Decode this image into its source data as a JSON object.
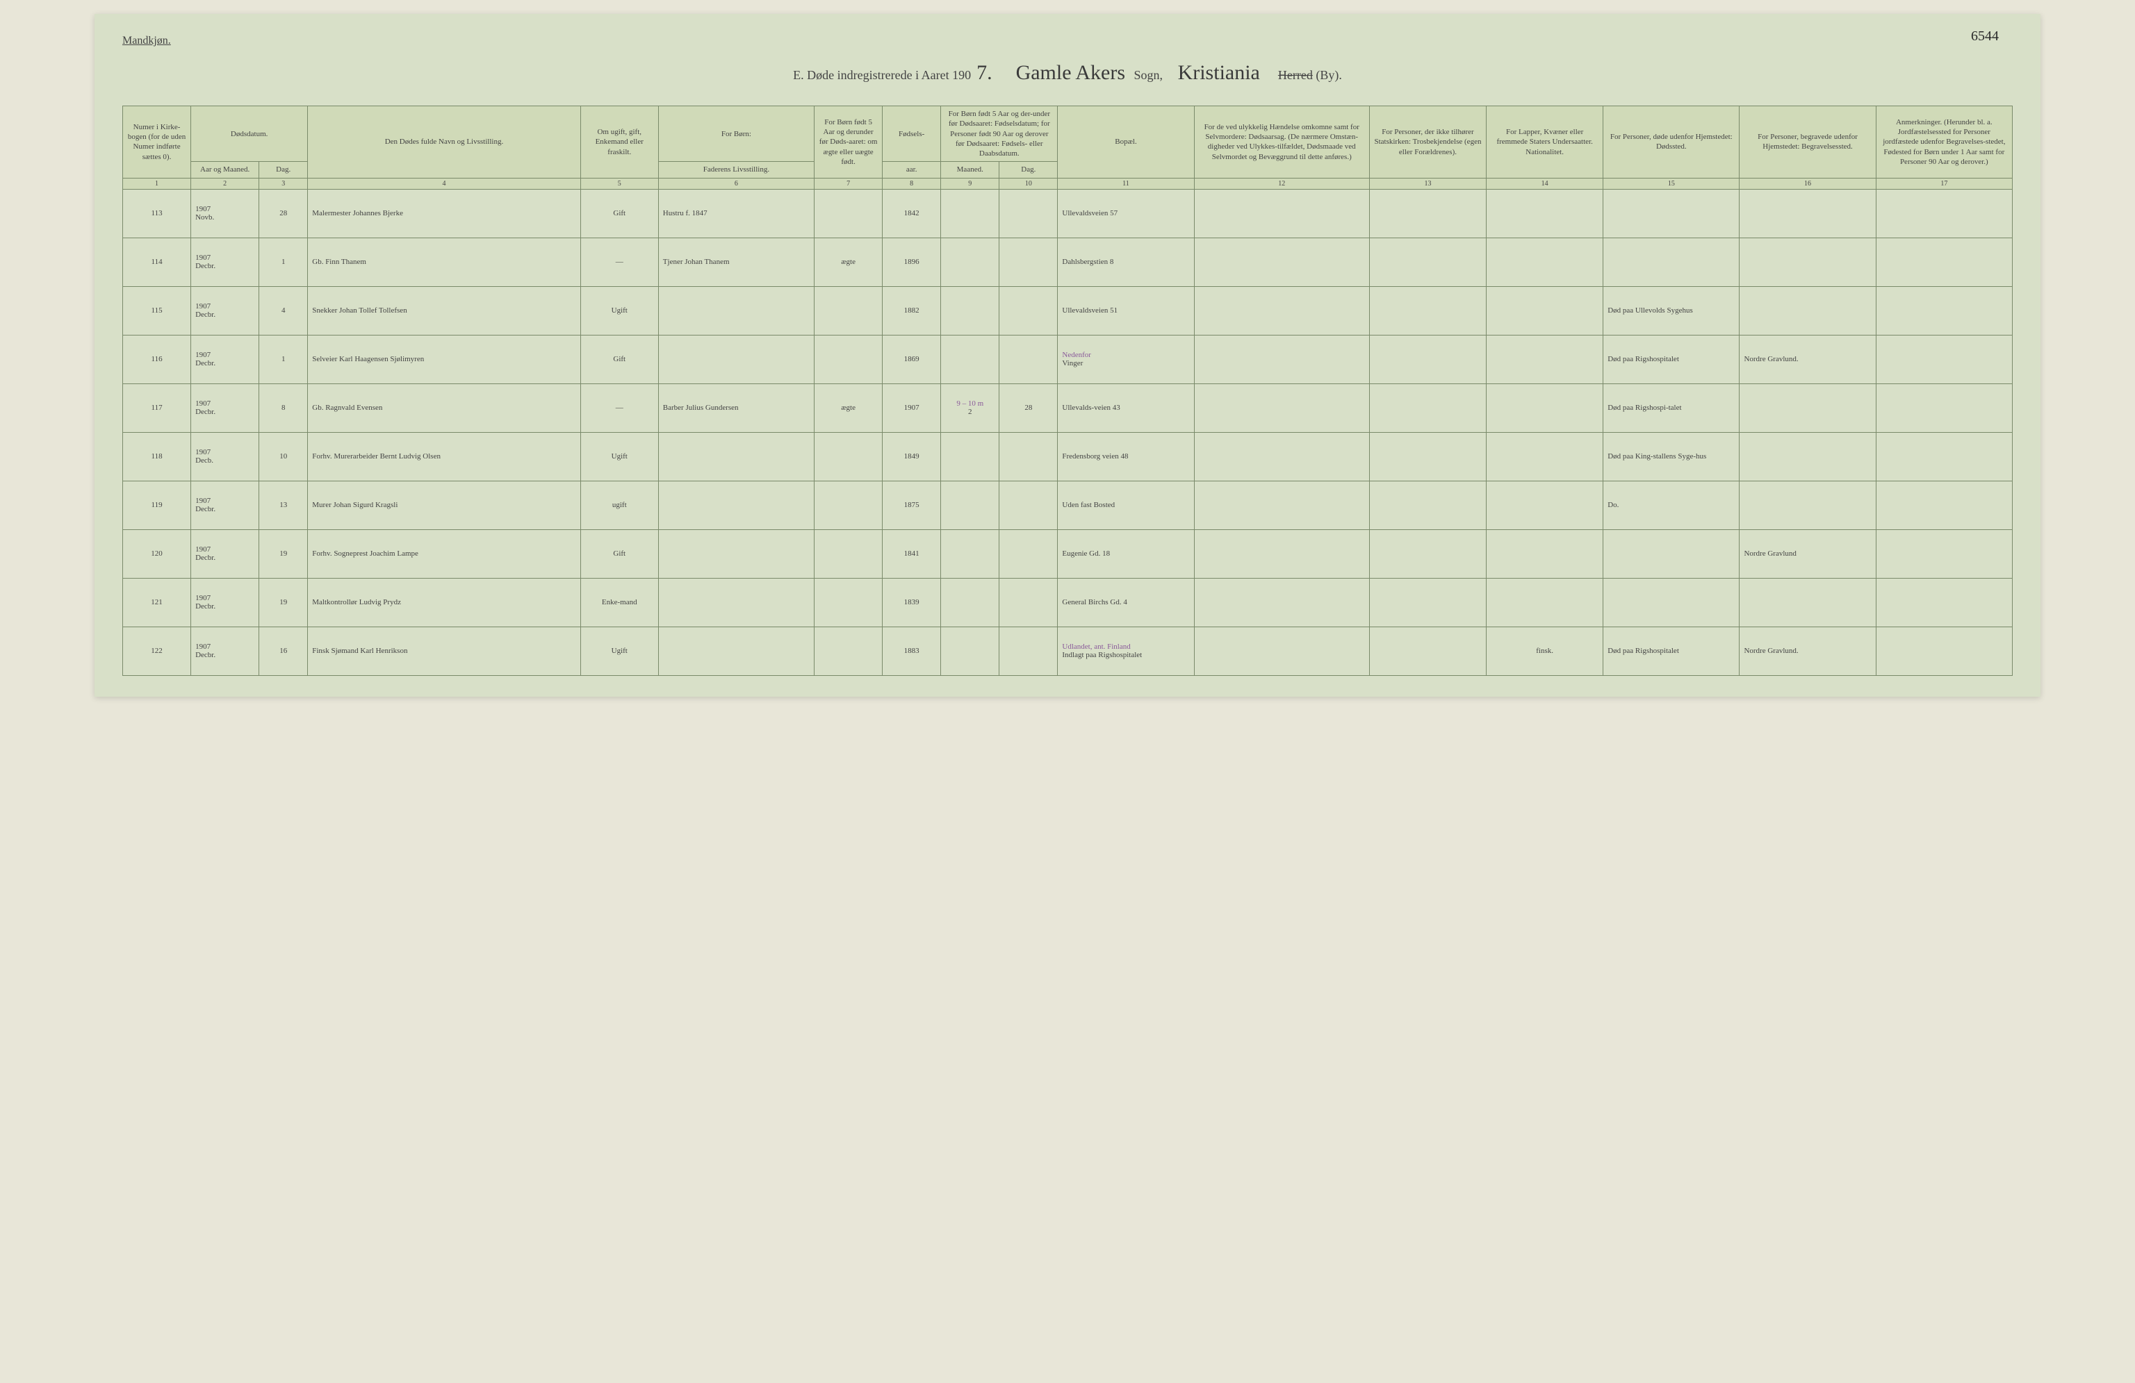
{
  "meta": {
    "page_number": "6544",
    "gender": "Mandkjøn.",
    "title_prefix": "E.  Døde indregistrerede i Aaret 190",
    "year_suffix": "7.",
    "parish_label": "Sogn,",
    "parish_name": "Gamle Akers",
    "district_name": "Kristiania",
    "district_struck": "Herred",
    "district_suffix": "(By)."
  },
  "headers": {
    "c1": "Numer i Kirke-bogen (for de uden Numer indførte sættes 0).",
    "c2_top": "Dødsdatum.",
    "c2a": "Aar og Maaned.",
    "c2b": "Dag.",
    "c4": "Den Dødes fulde Navn og Livsstilling.",
    "c5": "Om ugift, gift, Enkemand eller fraskilt.",
    "c6_top": "For Børn:",
    "c6": "Faderens Livsstilling.",
    "c7": "For Børn født 5 Aar og derunder før Døds-aaret: om ægte eller uægte født.",
    "c8_top": "Fødsels-",
    "c8": "aar.",
    "c9_top": "For Børn født 5 Aar og der-under før Dødsaaret: Fødselsdatum; for Personer født 90 Aar og derover før Dødsaaret: Fødsels- eller Daabsdatum.",
    "c9a": "Maaned.",
    "c9b": "Dag.",
    "c11": "Bopæl.",
    "c12": "For de ved ulykkelig Hændelse omkomne samt for Selvmordere: Dødsaarsag. (De nærmere Omstæn-digheder ved Ulykkes-tilfældet, Dødsmaade ved Selvmordet og Bevæggrund til dette anføres.)",
    "c13": "For Personer, der ikke tilhører Statskirken: Trosbekjendelse (egen eller Forældrenes).",
    "c14": "For Lapper, Kvæner eller fremmede Staters Undersaatter. Nationalitet.",
    "c15": "For Personer, døde udenfor Hjemstedet: Dødssted.",
    "c16": "For Personer, begravede udenfor Hjemstedet: Begravelsessted.",
    "c17": "Anmerkninger. (Herunder bl. a. Jordfæstelsessted for Personer jordfæstede udenfor Begravelses-stedet, Fødested for Børn under 1 Aar samt for Personer 90 Aar og derover.)"
  },
  "colnums": [
    "1",
    "2",
    "3",
    "4",
    "5",
    "6",
    "7",
    "8",
    "9",
    "10",
    "11",
    "12",
    "13",
    "14",
    "15",
    "16",
    "17"
  ],
  "rows": [
    {
      "num": "113",
      "year": "1907",
      "month": "Novb.",
      "day": "28",
      "name": "Malermester Johannes Bjerke",
      "marital": "Gift",
      "father": "Hustru f. 1847",
      "legit": "",
      "birthyear": "1842",
      "bm": "",
      "bd": "",
      "residence": "Ullevaldsveien 57",
      "cause": "",
      "faith": "",
      "nation": "",
      "deathplace": "",
      "burial": "",
      "notes": ""
    },
    {
      "num": "114",
      "year": "1907",
      "month": "Decbr.",
      "day": "1",
      "name": "Gb. Finn Thanem",
      "marital": "—",
      "father": "Tjener Johan Thanem",
      "legit": "ægte",
      "birthyear": "1896",
      "bm": "",
      "bd": "",
      "residence": "Dahlsbergstien 8",
      "cause": "",
      "faith": "",
      "nation": "",
      "deathplace": "",
      "burial": "",
      "notes": ""
    },
    {
      "num": "115",
      "year": "1907",
      "month": "Decbr.",
      "day": "4",
      "name": "Snekker Johan Tollef Tollefsen",
      "marital": "Ugift",
      "father": "",
      "legit": "",
      "birthyear": "1882",
      "bm": "",
      "bd": "",
      "residence": "Ullevaldsveien 51",
      "cause": "",
      "faith": "",
      "nation": "",
      "deathplace": "Død paa Ullevolds Sygehus",
      "burial": "",
      "notes": ""
    },
    {
      "num": "116",
      "year": "1907",
      "month": "Decbr.",
      "day": "1",
      "name": "Selveier Karl Haagensen Sjølimyren",
      "marital": "Gift",
      "father": "",
      "legit": "",
      "birthyear": "1869",
      "bm": "",
      "bd": "",
      "residence": "Vinger",
      "residence_note": "Nedenfor",
      "cause": "",
      "faith": "",
      "nation": "",
      "deathplace": "Død paa Rigshospitalet",
      "burial": "Nordre Gravlund.",
      "notes": ""
    },
    {
      "num": "117",
      "year": "1907",
      "month": "Decbr.",
      "day": "8",
      "name": "Gb. Ragnvald Evensen",
      "marital": "—",
      "father": "Barber Julius Gundersen",
      "legit": "ægte",
      "birthyear": "1907",
      "bm_note": "9 – 10 m",
      "bm": "2",
      "bd": "28",
      "residence": "Ullevalds-veien 43",
      "cause": "",
      "faith": "",
      "nation": "",
      "deathplace": "Død paa Rigshospi-talet",
      "burial": "",
      "notes": ""
    },
    {
      "num": "118",
      "year": "1907",
      "month": "Decb.",
      "day": "10",
      "name": "Forhv. Murerarbeider Bernt Ludvig Olsen",
      "marital": "Ugift",
      "father": "",
      "legit": "",
      "birthyear": "1849",
      "bm": "",
      "bd": "",
      "residence": "Fredensborg veien 48",
      "cause": "",
      "faith": "",
      "nation": "",
      "deathplace": "Død paa King-stallens Syge-hus",
      "burial": "",
      "notes": ""
    },
    {
      "num": "119",
      "year": "1907",
      "month": "Decbr.",
      "day": "13",
      "name": "Murer Johan Sigurd Kragsli",
      "marital": "ugift",
      "marital_purple": true,
      "father": "",
      "legit": "",
      "birthyear": "1875",
      "bm": "",
      "bd": "",
      "residence": "Uden fast Bosted",
      "cause": "",
      "faith": "",
      "nation": "",
      "deathplace": "Do.",
      "burial": "",
      "notes": ""
    },
    {
      "num": "120",
      "year": "1907",
      "month": "Decbr.",
      "day": "19",
      "name": "Forhv. Sogneprest Joachim Lampe",
      "marital": "Gift",
      "father": "",
      "legit": "",
      "birthyear": "1841",
      "bm": "",
      "bd": "",
      "residence": "Eugenie Gd. 18",
      "cause": "",
      "faith": "",
      "nation": "",
      "deathplace": "",
      "burial": "Nordre Gravlund",
      "notes": ""
    },
    {
      "num": "121",
      "year": "1907",
      "month": "Decbr.",
      "day": "19",
      "name": "Maltkontrollør Ludvig Prydz",
      "marital": "Enke-mand",
      "father": "",
      "legit": "",
      "birthyear": "1839",
      "bm": "",
      "bd": "",
      "residence": "General Birchs Gd. 4",
      "cause": "",
      "faith": "",
      "nation": "",
      "deathplace": "",
      "burial": "",
      "notes": ""
    },
    {
      "num": "122",
      "year": "1907",
      "month": "Decbr.",
      "day": "16",
      "name": "Finsk Sjømand Karl Henrikson",
      "marital": "Ugift",
      "father": "",
      "legit": "",
      "birthyear": "1883",
      "bm": "",
      "bd": "",
      "residence": "Indlagt paa Rigshospitalet",
      "residence_note": "Udlandet, ant. Finland",
      "cause": "",
      "faith": "",
      "nation": "finsk.",
      "deathplace": "Død paa Rigshospitalet",
      "burial": "Nordre Gravlund.",
      "notes": ""
    }
  ]
}
